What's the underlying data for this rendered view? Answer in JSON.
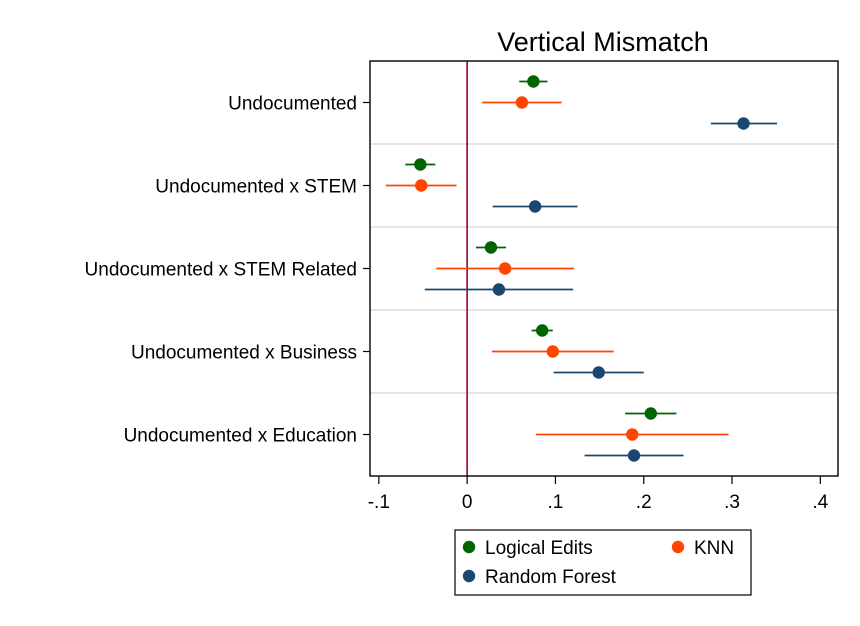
{
  "chart_data": {
    "type": "scatter",
    "title": "Vertical Mismatch",
    "categories": [
      "Undocumented",
      "Undocumented x STEM",
      "Undocumented x STEM Related",
      "Undocumented x Business",
      "Undocumented x Education"
    ],
    "xlim": [
      -0.11,
      0.42
    ],
    "xticks": [
      {
        "value": -0.1,
        "label": "-.1"
      },
      {
        "value": 0,
        "label": "0"
      },
      {
        "value": 0.1,
        "label": ".1"
      },
      {
        "value": 0.2,
        "label": ".2"
      },
      {
        "value": 0.3,
        "label": ".3"
      },
      {
        "value": 0.4,
        "label": ".4"
      }
    ],
    "reference_line": 0,
    "reference_color": "#990033",
    "grid": "horizontal-between-groups",
    "legend_position": "bottom",
    "series": [
      {
        "name": "Logical Edits",
        "color": "#006400",
        "estimates": [
          0.075,
          -0.053,
          0.027,
          0.085,
          0.208
        ],
        "ci_low": [
          0.059,
          -0.07,
          0.01,
          0.073,
          0.179
        ],
        "ci_high": [
          0.091,
          -0.036,
          0.044,
          0.097,
          0.237
        ]
      },
      {
        "name": "KNN",
        "color": "#ff4500",
        "estimates": [
          0.062,
          -0.052,
          0.043,
          0.097,
          0.187
        ],
        "ci_low": [
          0.017,
          -0.092,
          -0.035,
          0.028,
          0.078
        ],
        "ci_high": [
          0.107,
          -0.012,
          0.121,
          0.166,
          0.296
        ]
      },
      {
        "name": "Random Forest",
        "color": "#1a476f",
        "estimates": [
          0.313,
          0.077,
          0.036,
          0.149,
          0.189
        ],
        "ci_low": [
          0.276,
          0.029,
          -0.048,
          0.098,
          0.133
        ],
        "ci_high": [
          0.351,
          0.125,
          0.12,
          0.2,
          0.245
        ]
      }
    ]
  }
}
